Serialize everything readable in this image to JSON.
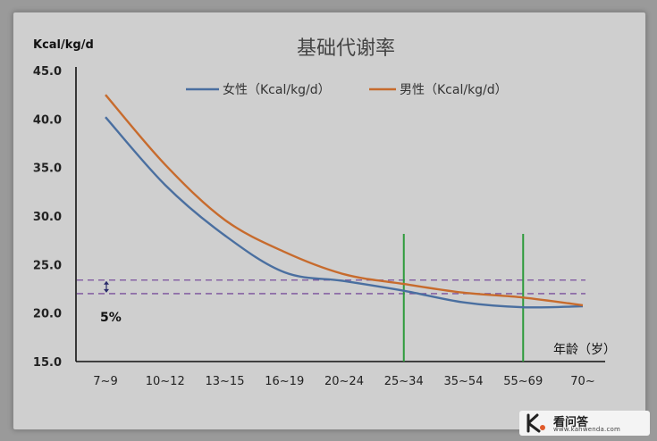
{
  "chart_data": {
    "type": "line",
    "title": "基础代谢率",
    "ylabel": "Kcal/kg/d",
    "xlabel": "年龄（岁）",
    "categories": [
      "7~9",
      "10~12",
      "13~15",
      "16~19",
      "20~24",
      "25~34",
      "35~54",
      "55~69",
      "70~"
    ],
    "ylim": [
      15,
      45
    ],
    "yticks": [
      "15.0",
      "20.0",
      "25.0",
      "30.0",
      "35.0",
      "40.0",
      "45.0"
    ],
    "legend_position": "top",
    "grid": false,
    "series": [
      {
        "name": "女性（Kcal/kg/d）",
        "color": "#4a6fa0",
        "values": [
          40.2,
          33.2,
          28.0,
          24.2,
          23.3,
          22.3,
          21.1,
          20.6,
          20.7
        ]
      },
      {
        "name": "男性（Kcal/kg/d）",
        "color": "#c76b2d",
        "values": [
          42.5,
          35.3,
          29.6,
          26.3,
          24.0,
          23.0,
          22.1,
          21.6,
          20.8
        ]
      }
    ],
    "reference_lines": [
      {
        "y": 23.4,
        "style": "dashed",
        "color": "#7a4f9c"
      },
      {
        "y": 22.0,
        "style": "dashed",
        "color": "#7a4f9c"
      }
    ],
    "markers": [
      {
        "x": "25~34",
        "color": "#2e9b3c"
      },
      {
        "x": "55~69",
        "color": "#2e9b3c"
      }
    ],
    "annotation": "5%"
  },
  "watermark": {
    "name": "看问答",
    "url": "www.kanwenda.com"
  }
}
